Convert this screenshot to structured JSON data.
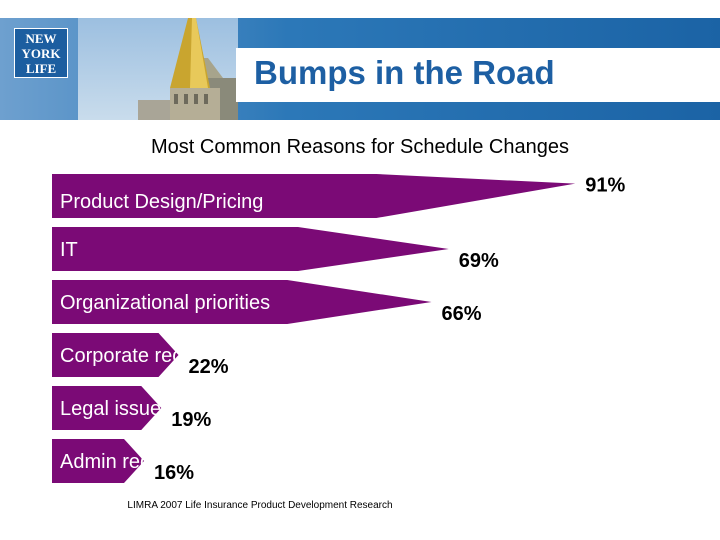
{
  "header": {
    "logo_lines": [
      "NEW",
      "YORK",
      "LIFE"
    ],
    "title": "Bumps in the Road"
  },
  "source": "LIMRA 2007 Life Insurance Product Development Research",
  "colors": {
    "bar": "#7b0a76",
    "title": "#1d5fa3",
    "header": "#1f6fb2"
  },
  "chart_data": {
    "type": "bar",
    "orientation": "horizontal",
    "title": "Most Common Reasons for Schedule Changes",
    "categories": [
      "Product Design/Pricing",
      "IT",
      "Organizational priorities",
      "Corporate requirements",
      "Legal issues",
      "Admin req."
    ],
    "values": [
      91,
      69,
      66,
      22,
      19,
      16
    ],
    "value_labels": [
      "91%",
      "69%",
      "66%",
      "22%",
      "19%",
      "16%"
    ],
    "unit": "%",
    "xlim": [
      0,
      100
    ]
  }
}
